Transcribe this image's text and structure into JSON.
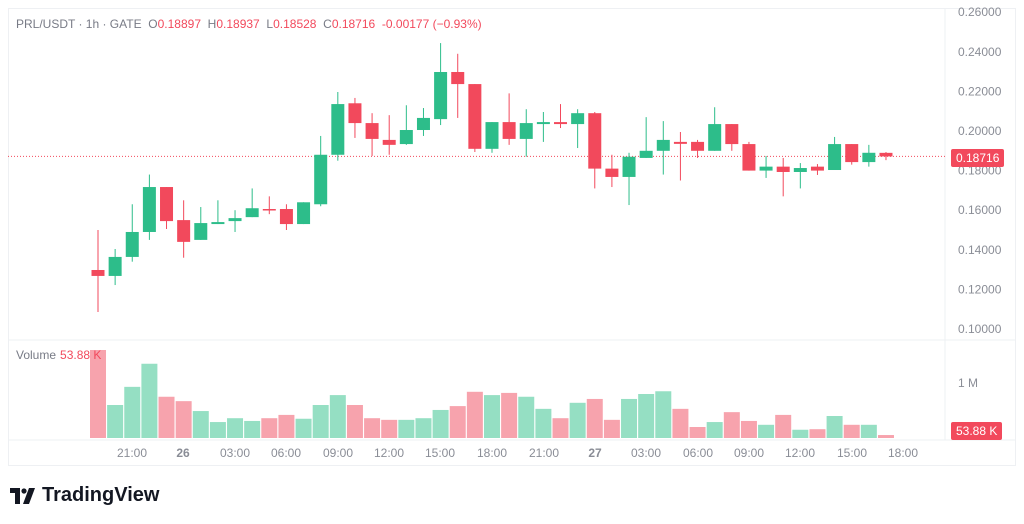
{
  "legend": {
    "symbol": "PRL/USDT · 1h · GATE",
    "o_label": "O",
    "o": "0.18897",
    "h_label": "H",
    "h": "0.18937",
    "l_label": "L",
    "l": "0.18528",
    "c_label": "C",
    "c": "0.18716",
    "change": "-0.00177 (−0.93%)"
  },
  "volume_legend": {
    "label": "Volume",
    "value": "53.88 K"
  },
  "price_axis": {
    "ticks": [
      "0.26000",
      "0.24000",
      "0.22000",
      "0.20000",
      "0.18000",
      "0.16000",
      "0.14000",
      "0.12000",
      "0.10000"
    ],
    "tick_values": [
      0.26,
      0.24,
      0.22,
      0.2,
      0.18,
      0.16,
      0.14,
      0.12,
      0.1
    ],
    "current": "0.18716",
    "current_value": 0.18716
  },
  "volume_axis": {
    "tick": "1 M",
    "current": "53.88 K"
  },
  "time_axis": {
    "labels": [
      "21:00",
      "26",
      "03:00",
      "06:00",
      "09:00",
      "12:00",
      "15:00",
      "18:00",
      "21:00",
      "27",
      "03:00",
      "06:00",
      "09:00",
      "12:00",
      "15:00",
      "18:00"
    ],
    "bold": [
      "26",
      "27"
    ]
  },
  "colors": {
    "up": "#2dbd8a",
    "down": "#f2495c",
    "up_vol": "#95dfc3",
    "down_vol": "#f7a3ad"
  },
  "chart_data": {
    "type": "candlestick",
    "title": "PRL/USDT · 1h · GATE",
    "ylim": [
      0.1,
      0.26
    ],
    "candles": [
      [
        0.1298,
        0.15,
        0.1086,
        0.1268,
        1.6
      ],
      [
        0.1268,
        0.1404,
        0.1222,
        0.1364,
        0.6
      ],
      [
        0.1364,
        0.163,
        0.134,
        0.149,
        0.93
      ],
      [
        0.149,
        0.178,
        0.145,
        0.1717,
        1.35
      ],
      [
        0.1717,
        0.1717,
        0.1505,
        0.1545,
        0.75
      ],
      [
        0.155,
        0.165,
        0.136,
        0.144,
        0.67
      ],
      [
        0.145,
        0.1616,
        0.145,
        0.1535,
        0.49
      ],
      [
        0.153,
        0.165,
        0.153,
        0.154,
        0.29
      ],
      [
        0.1545,
        0.16,
        0.149,
        0.156,
        0.36
      ],
      [
        0.1565,
        0.171,
        0.1565,
        0.161,
        0.31
      ],
      [
        0.1606,
        0.167,
        0.158,
        0.16,
        0.36
      ],
      [
        0.1606,
        0.163,
        0.15,
        0.153,
        0.42
      ],
      [
        0.153,
        0.164,
        0.153,
        0.164,
        0.35
      ],
      [
        0.163,
        0.1975,
        0.162,
        0.188,
        0.6
      ],
      [
        0.188,
        0.2197,
        0.185,
        0.2136,
        0.78
      ],
      [
        0.214,
        0.2167,
        0.1965,
        0.204,
        0.6
      ],
      [
        0.204,
        0.209,
        0.1874,
        0.196,
        0.36
      ],
      [
        0.1955,
        0.208,
        0.188,
        0.193,
        0.33
      ],
      [
        0.1934,
        0.213,
        0.193,
        0.2005,
        0.33
      ],
      [
        0.2005,
        0.2116,
        0.1975,
        0.2066,
        0.36
      ],
      [
        0.206,
        0.2444,
        0.203,
        0.2298,
        0.51
      ],
      [
        0.2298,
        0.239,
        0.2066,
        0.2237,
        0.58
      ],
      [
        0.2237,
        0.2237,
        0.1894,
        0.191,
        0.84
      ],
      [
        0.191,
        0.2045,
        0.189,
        0.2045,
        0.78
      ],
      [
        0.2045,
        0.219,
        0.193,
        0.196,
        0.82
      ],
      [
        0.196,
        0.211,
        0.187,
        0.204,
        0.75
      ],
      [
        0.2035,
        0.2096,
        0.1945,
        0.2045,
        0.53
      ],
      [
        0.2045,
        0.2136,
        0.2015,
        0.2035,
        0.36
      ],
      [
        0.2035,
        0.211,
        0.1914,
        0.209,
        0.64
      ],
      [
        0.209,
        0.2096,
        0.171,
        0.181,
        0.71
      ],
      [
        0.181,
        0.188,
        0.1717,
        0.1768,
        0.33
      ],
      [
        0.1768,
        0.189,
        0.1626,
        0.187,
        0.71
      ],
      [
        0.1864,
        0.207,
        0.1864,
        0.19,
        0.8
      ],
      [
        0.19,
        0.205,
        0.178,
        0.1955,
        0.85
      ],
      [
        0.1945,
        0.1995,
        0.175,
        0.1935,
        0.53
      ],
      [
        0.1945,
        0.1955,
        0.1864,
        0.19,
        0.2
      ],
      [
        0.19,
        0.212,
        0.19,
        0.2035,
        0.29
      ],
      [
        0.2035,
        0.2035,
        0.19,
        0.1934,
        0.47
      ],
      [
        0.1934,
        0.1945,
        0.18,
        0.18,
        0.31
      ],
      [
        0.18,
        0.1874,
        0.1763,
        0.182,
        0.24
      ],
      [
        0.182,
        0.1864,
        0.167,
        0.1793,
        0.42
      ],
      [
        0.1793,
        0.1838,
        0.171,
        0.1813,
        0.15
      ],
      [
        0.182,
        0.1833,
        0.1778,
        0.18,
        0.16
      ],
      [
        0.1803,
        0.197,
        0.1803,
        0.1934,
        0.4
      ],
      [
        0.1934,
        0.1934,
        0.183,
        0.1843,
        0.24
      ],
      [
        0.1843,
        0.193,
        0.182,
        0.189,
        0.24
      ],
      [
        0.18897,
        0.18937,
        0.18528,
        0.18716,
        0.05388
      ]
    ],
    "candle_fields": [
      "open",
      "high",
      "low",
      "close",
      "volume_millions"
    ]
  },
  "logo": {
    "text": "TradingView"
  }
}
